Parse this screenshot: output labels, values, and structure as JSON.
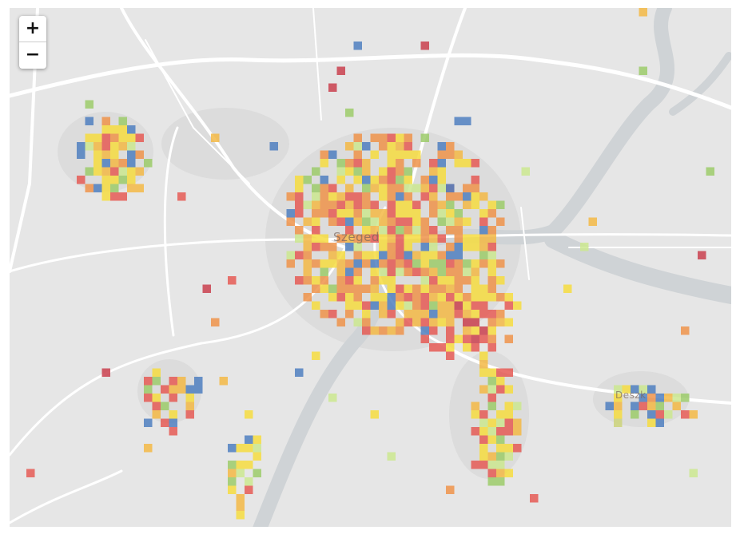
{
  "map": {
    "zoom_in_label": "+",
    "zoom_out_label": "−",
    "places": [
      {
        "name": "Szeged"
      },
      {
        "name": "Deszk"
      }
    ],
    "basemap_colors": {
      "land": "#e6e6e6",
      "water": "#cfd3d6",
      "road": "#ffffff",
      "urban": "#dcdcdc"
    },
    "legend_palette": [
      "#4f7fbf",
      "#9ccb6a",
      "#cbe78f",
      "#f6dc3f",
      "#f3b845",
      "#ef934a",
      "#e55a55",
      "#c9404d"
    ]
  }
}
